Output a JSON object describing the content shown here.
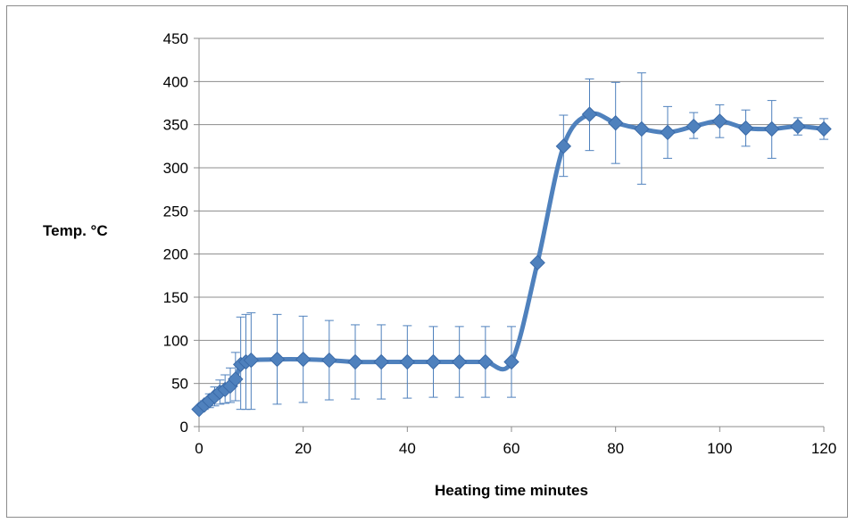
{
  "chart_data": {
    "type": "line",
    "title": "",
    "xlabel": "Heating time minutes",
    "ylabel": "Temp. °C",
    "xlim": [
      0,
      120
    ],
    "ylim": [
      0,
      450
    ],
    "xticks": [
      0,
      20,
      40,
      60,
      80,
      100,
      120
    ],
    "yticks": [
      0,
      50,
      100,
      150,
      200,
      250,
      300,
      350,
      400,
      450
    ],
    "grid": "horizontal",
    "legend": "none",
    "series_color": "#4f81bd",
    "series": [
      {
        "name": "",
        "x": [
          0,
          1,
          2,
          3,
          4,
          5,
          6,
          7,
          8,
          9,
          10,
          15,
          20,
          25,
          30,
          35,
          40,
          45,
          50,
          55,
          60,
          65,
          70,
          75,
          80,
          85,
          90,
          95,
          100,
          105,
          110,
          115,
          120
        ],
        "y": [
          20,
          25,
          30,
          35,
          40,
          43,
          47,
          55,
          72,
          75,
          77,
          78,
          78,
          77,
          75,
          75,
          75,
          75,
          75,
          75,
          75,
          190,
          325,
          362,
          352,
          345,
          341,
          348,
          354,
          346,
          345,
          348,
          345
        ],
        "y_low": [
          18,
          20,
          22,
          24,
          26,
          27,
          28,
          30,
          20,
          20,
          20,
          26,
          28,
          31,
          32,
          32,
          33,
          34,
          34,
          34,
          34,
          190,
          290,
          320,
          305,
          281,
          311,
          334,
          335,
          325,
          311,
          338,
          333
        ],
        "y_high": [
          22,
          30,
          38,
          46,
          54,
          60,
          68,
          86,
          127,
          130,
          132,
          130,
          128,
          123,
          118,
          118,
          117,
          116,
          116,
          116,
          116,
          190,
          361,
          403,
          399,
          410,
          371,
          364,
          373,
          367,
          378,
          358,
          357
        ]
      }
    ]
  }
}
